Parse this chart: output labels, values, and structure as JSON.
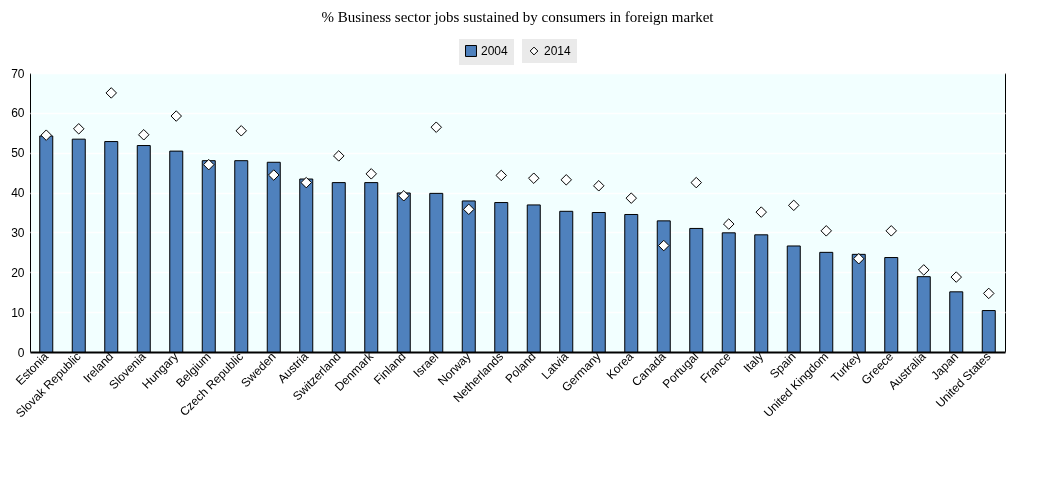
{
  "chart_data": {
    "type": "bar",
    "title": "% Business sector jobs sustained by consumers in foreign market",
    "categories": [
      "Estonia",
      "Slovak Republic",
      "Ireland",
      "Slovenia",
      "Hungary",
      "Belgium",
      "Czech Republic",
      "Sweden",
      "Austria",
      "Switzerland",
      "Denmark",
      "Finland",
      "Israel",
      "Norway",
      "Netherlands",
      "Poland",
      "Latvia",
      "Germany",
      "Korea",
      "Canada",
      "Portugal",
      "France",
      "Italy",
      "Spain",
      "United Kingdom",
      "Turkey",
      "Greece",
      "Australia",
      "Japan",
      "United States"
    ],
    "series": [
      {
        "name": "2004",
        "type": "bar",
        "color": "#4f81bd",
        "values": [
          54.2,
          53.4,
          52.8,
          51.8,
          50.4,
          48,
          48,
          47.6,
          43.4,
          42.5,
          42.5,
          39.9,
          39.8,
          37.9,
          37.5,
          36.9,
          35.3,
          35,
          34.5,
          32.9,
          31,
          29.9,
          29.4,
          26.6,
          25,
          24.5,
          23.7,
          18.9,
          15.1,
          10.4
        ]
      },
      {
        "name": "2014",
        "type": "scatter",
        "color": "#ffffff",
        "marker": "diamond",
        "values": [
          54.4,
          56,
          65,
          54.5,
          59.2,
          47,
          55.5,
          44.4,
          42.5,
          49.2,
          44.7,
          39.2,
          56.4,
          35.8,
          44.3,
          43.6,
          43.2,
          41.7,
          38.6,
          26.7,
          42.5,
          32.1,
          35.1,
          36.8,
          30.4,
          23.4,
          30.4,
          20.6,
          18.8,
          14.7
        ]
      }
    ],
    "ylim": [
      0,
      70
    ],
    "yticks": [
      0,
      10,
      20,
      30,
      40,
      50,
      60,
      70
    ],
    "grid": "y",
    "legend": "top"
  }
}
